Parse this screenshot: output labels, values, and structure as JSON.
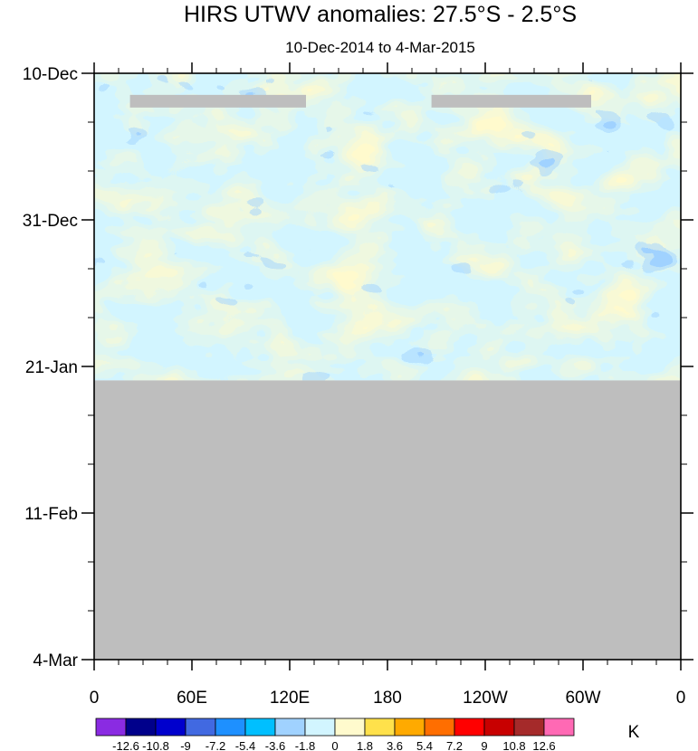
{
  "chart_data": {
    "type": "heatmap",
    "title": "HIRS UTWV anomalies: 27.5°S - 2.5°S",
    "subtitle": "10-Dec-2014 to 4-Mar-2015",
    "x_ticks": [
      "0",
      "60E",
      "120E",
      "180",
      "120W",
      "60W",
      "0"
    ],
    "x_tick_lon": [
      0,
      60,
      120,
      180,
      240,
      300,
      360
    ],
    "y_ticks": [
      "10-Dec",
      "31-Dec",
      "21-Jan",
      "11-Feb",
      "4-Mar"
    ],
    "y_tick_days": [
      0,
      21,
      42,
      63,
      84
    ],
    "data_end_day": 44,
    "missing_segments": [
      {
        "lon_start": 22,
        "lon_end": 130,
        "day": 4
      },
      {
        "lon_start": 207,
        "lon_end": 305,
        "day": 4
      }
    ],
    "colorbar": {
      "unit": "K",
      "labels": [
        "-12.6",
        "-10.8",
        "-9",
        "-7.2",
        "-5.4",
        "-3.6",
        "-1.8",
        "0",
        "1.8",
        "3.6",
        "5.4",
        "7.2",
        "9",
        "10.8",
        "12.6"
      ],
      "colors": [
        "#8a2be2",
        "#00008b",
        "#0000cd",
        "#4169e1",
        "#1e90ff",
        "#00bfff",
        "#a0d2ff",
        "#d2f5ff",
        "#fffacd",
        "#ffe14b",
        "#ffaa00",
        "#ff6e00",
        "#ff0000",
        "#c80000",
        "#a52a2a",
        "#ff69b4"
      ]
    },
    "missing_color": "#bebebe",
    "field_shown_colors": [
      "#d2f5ff",
      "#fffacd",
      "#ffe14b",
      "#ffaa00",
      "#a0d2ff",
      "#00bfff",
      "#ff6e00",
      "#1e90ff"
    ]
  }
}
